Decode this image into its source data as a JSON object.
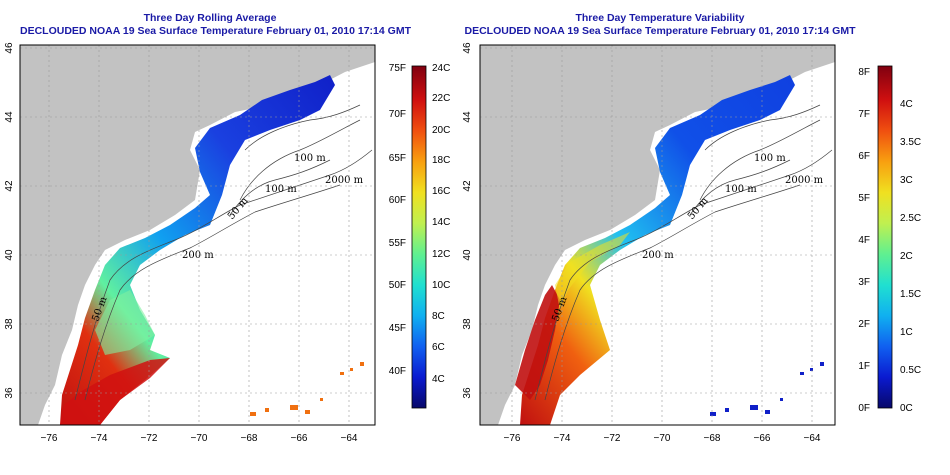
{
  "panels": [
    {
      "id": "left",
      "title": "Three Day Rolling Average",
      "subtitle": "DECLOUDED NOAA 19 Sea Surface Temperature February 01, 2010 17:14 GMT",
      "colorbar": {
        "f_labels": [
          "75F",
          "70F",
          "65F",
          "60F",
          "55F",
          "50F",
          "45F",
          "40F"
        ],
        "c_labels": [
          "24C",
          "22C",
          "20C",
          "18C",
          "16C",
          "14C",
          "12C",
          "10C",
          "8C",
          "6C",
          "4C"
        ],
        "colors": [
          "#08086a",
          "#0a1ad0",
          "#1060f0",
          "#10b0f0",
          "#20e0d0",
          "#60f090",
          "#c0f050",
          "#f0e020",
          "#f8a010",
          "#f05010",
          "#d01010",
          "#800010"
        ]
      },
      "isobath_labels": [
        "100 m",
        "100 m",
        "2000 m",
        "50 m",
        "200 m",
        "50 m"
      ]
    },
    {
      "id": "right",
      "title": "Three Day Temperature Variability",
      "subtitle": "DECLOUDED NOAA 19 Sea Surface Temperature February 01, 2010 17:14 GMT",
      "colorbar": {
        "f_labels": [
          "8F",
          "7F",
          "6F",
          "5F",
          "4F",
          "3F",
          "2F",
          "1F",
          "0F"
        ],
        "c_labels": [
          "4C",
          "3.5C",
          "3C",
          "2.5C",
          "2C",
          "1.5C",
          "1C",
          "0.5C",
          "0C"
        ],
        "colors": [
          "#08086a",
          "#0a1ad0",
          "#1060f0",
          "#10b0f0",
          "#20e0d0",
          "#60f090",
          "#c0f050",
          "#f0e020",
          "#f8a010",
          "#f05010",
          "#d01010",
          "#800010"
        ]
      },
      "isobath_labels": [
        "100 m",
        "100 m",
        "2000 m",
        "50 m",
        "200 m",
        "50 m"
      ]
    }
  ],
  "axes": {
    "lon_ticks": [
      "−76",
      "−74",
      "−72",
      "−70",
      "−68",
      "−66",
      "−64"
    ],
    "lat_ticks": [
      "46",
      "44",
      "42",
      "40",
      "38",
      "36"
    ]
  }
}
